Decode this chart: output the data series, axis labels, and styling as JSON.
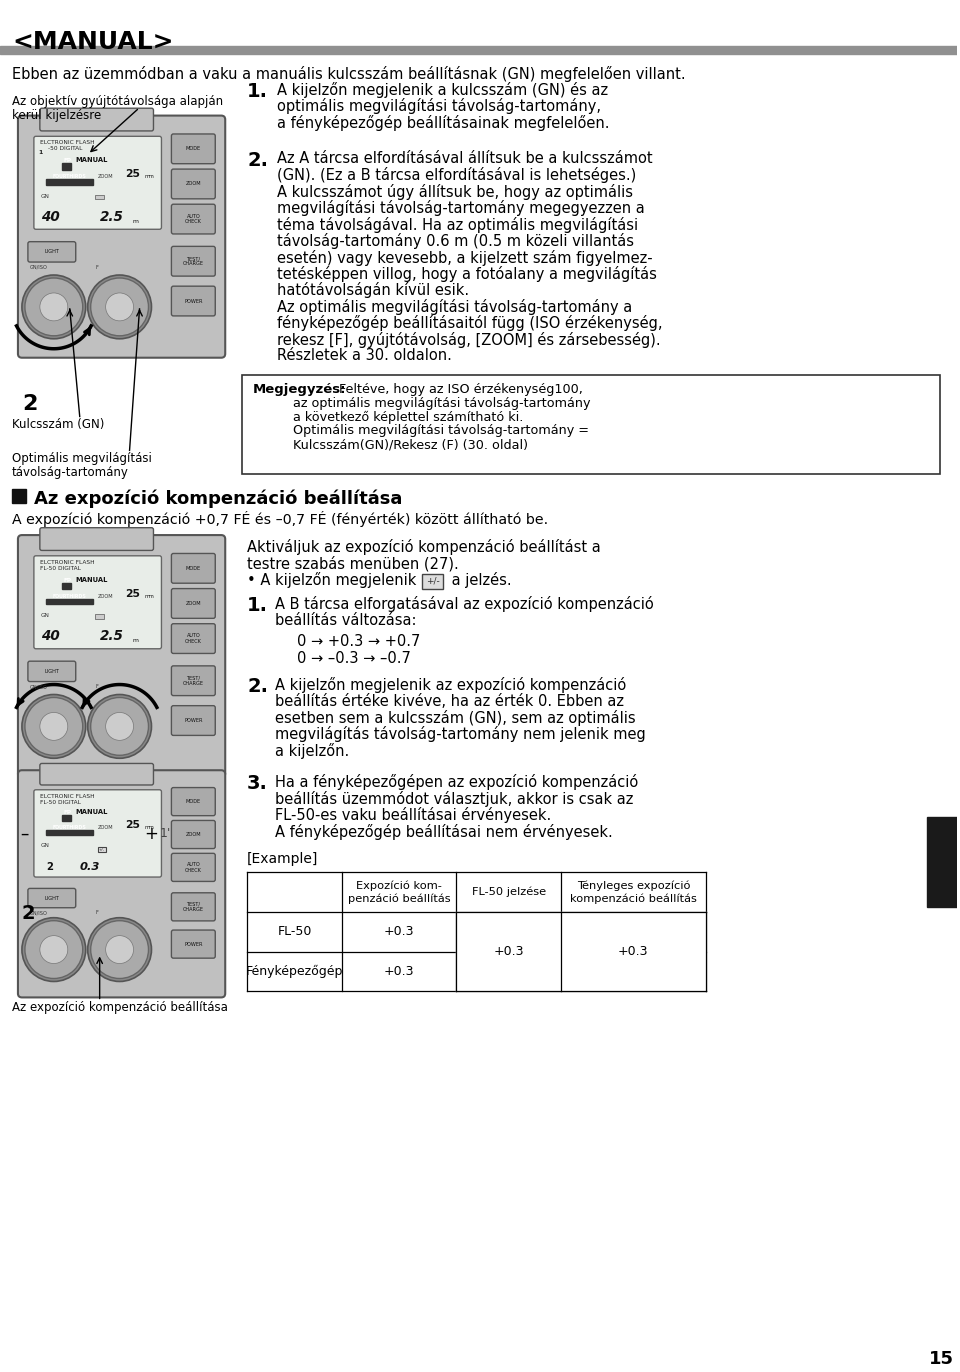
{
  "bg_color": "#ffffff",
  "page_width": 9.6,
  "page_height": 13.72,
  "title": "<MANUAL>",
  "line1": "Ebben az üzemmódban a vaku a manuális kulcsszám beállításnak (GN) megfelelően villant.",
  "left_label1_line1": "Az objektív gyújtótávolsága alapján",
  "left_label1_line2": "kerül kijelzésre",
  "left_label2": "Kulcsszám (GN)",
  "left_label3_line1": "Optimális megvilágítási",
  "left_label3_line2": "távolság-tartomány",
  "step1_num": "1.",
  "step1_text_line1": "A kijelzőn megjelenik a kulcsszám (GN) és az",
  "step1_text_line2": "optimális megvilágítási távolság-tartomány,",
  "step1_text_line3": "a fényképezőgép beállításainak megfelelően.",
  "step2_num": "2.",
  "step2_lines": [
    "Az A tárcsa elfordításával állítsuk be a kulcsszámot",
    "(GN). (Ez a B tárcsa elfordításával is lehetséges.)",
    "A kulcsszámot úgy állítsuk be, hogy az optimális",
    "megvilágítási távolság-tartomány megegyezzen a",
    "téma távolságával. Ha az optimális megvilágítási",
    "távolság-tartomány 0.6 m (0.5 m közeli villantás",
    "esetén) vagy kevesebb, a kijelzett szám figyelmez-",
    "tetésképpen villog, hogy a fotóalany a megvilágítás",
    "hatótávolságán kívül esik.",
    "Az optimális megvilágítási távolság-tartomány a",
    "fényképezőgép beállításaitól függ (ISO érzékenység,",
    "rekesz [F], gyújtótávolság, [ZOOM] és zársebesség).",
    "Részletek a 30. oldalon."
  ],
  "note_bold": "Megjegyzés:",
  "note_lines": [
    " Feltéve, hogy az ISO érzékenység100,",
    "          az optimális megvilágítási távolság-tartomány",
    "          a következő képlettel számítható ki.",
    "          Optimális megvilágítási távolság-tartomány =",
    "          Kulcsszám(GN)/Rekesz (F) (30. oldal)"
  ],
  "section2_title": "Az expozíció kompenzáció beállítása",
  "section2_sub": "A expozíció kompenzáció +0,7 FÉ és –0,7 FÉ (fényérték) között állítható be.",
  "act_line1": "Aktiváljuk az expozíció kompenzáció beállítást a",
  "act_line2": "testre szabás menüben (27).",
  "act_line3_pre": "• A kijelzőn megjelenik ",
  "act_line3_post": " a jelzés.",
  "exp_step1_num": "1.",
  "exp_step1_line1": "A B tárcsa elforgatásával az expozíció kompenzáció",
  "exp_step1_line2": "beállítás változása:",
  "arrow_line1": "0 → +0.3 → +0.7",
  "arrow_line2": "0 → –0.3 → –0.7",
  "exp_step2_num": "2.",
  "exp_step2_lines": [
    "A kijelzőn megjelenik az expozíció kompenzáció",
    "beállítás értéke kivéve, ha az érték 0. Ebben az",
    "esetben sem a kulcsszám (GN), sem az optimális",
    "megvilágítás távolság-tartomány nem jelenik meg",
    "a kijelzőn."
  ],
  "exp_step3_num": "3.",
  "exp_step3_lines": [
    "Ha a fényképezőgépen az expozíció kompenzáció",
    "beállítás üzemmódot választjuk, akkor is csak az",
    "FL-50-es vaku beállításai érvényesek.",
    "A fényképezőgép beállításai nem érvényesek."
  ],
  "example_label": "[Example]",
  "th0": "",
  "th1_line1": "Expozíció kom-",
  "th1_line2": "penzáció beállítás",
  "th2": "FL-50 jelzése",
  "th3_line1": "Tényleges expozíció",
  "th3_line2": "kompenzáció beállítás",
  "tr1c0": "FL-50",
  "tr1c1": "+0.3",
  "tr2c0": "Fényképezőgép",
  "tr2c1": "+0.3",
  "merged_val1": "+0.3",
  "merged_val2": "+0.3",
  "page_num": "15",
  "gray_bar_color": "#909090",
  "flash_bg": "#c0c0c0",
  "flash_screen_bg": "#e8ede8",
  "flash_border": "#555555",
  "black_rect_color": "#1a1a1a"
}
